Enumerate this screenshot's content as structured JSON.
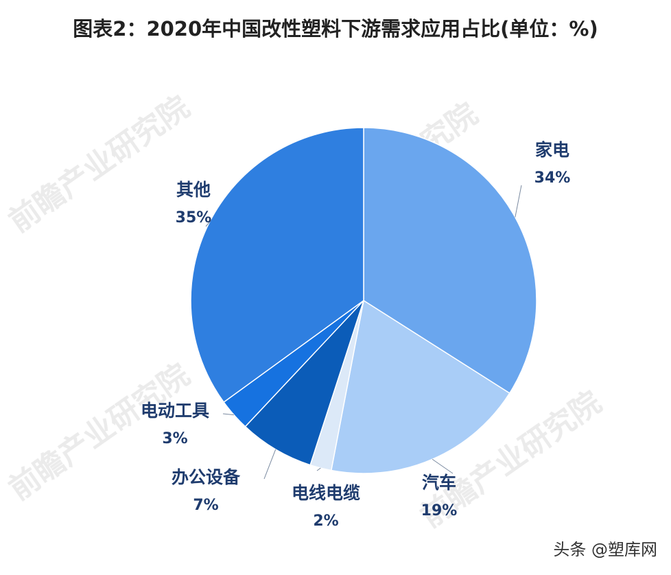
{
  "chart_data": {
    "type": "pie",
    "title": "图表2：2020年中国改性塑料下游需求应用占比(单位：%)",
    "categories": [
      "家电",
      "汽车",
      "电线电缆",
      "办公设备",
      "电动工具",
      "其他"
    ],
    "values": [
      34,
      19,
      2,
      7,
      3,
      35
    ],
    "value_labels": [
      "34%",
      "19%",
      "2%",
      "7%",
      "3%",
      "35%"
    ],
    "colors": [
      "#6aa6ee",
      "#a9cdf7",
      "#dce9f8",
      "#0b5cb8",
      "#1672e0",
      "#2f7fe0"
    ],
    "watermark": "前瞻产业研究院",
    "footer": "头条 @塑库网"
  }
}
